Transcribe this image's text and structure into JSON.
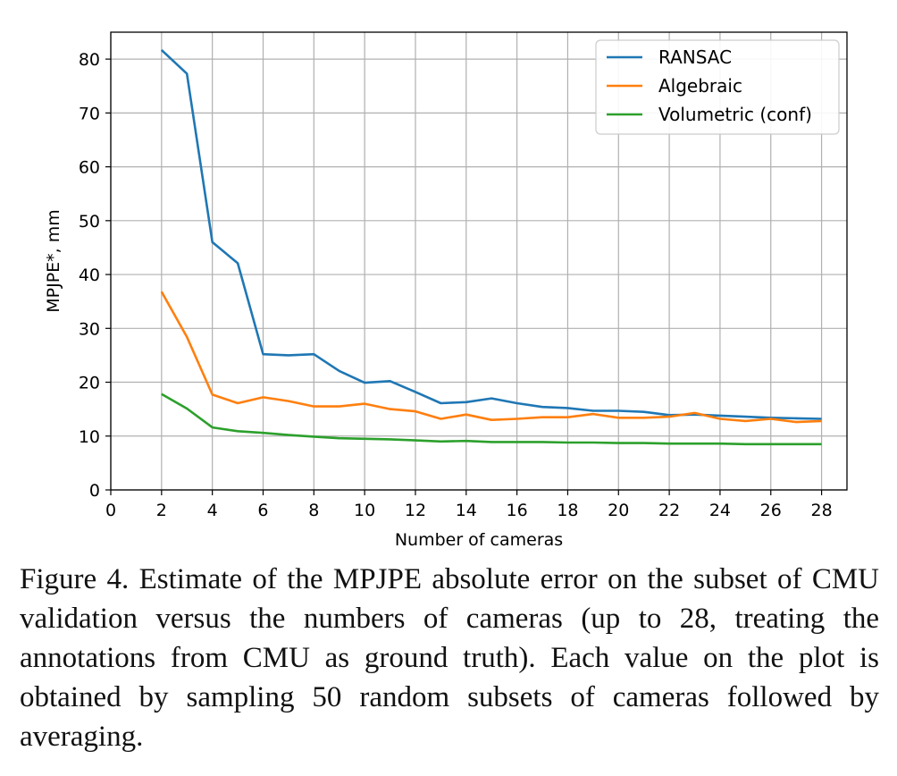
{
  "chart_data": {
    "type": "line",
    "xlabel": "Number of cameras",
    "ylabel": "MPJPE*, mm",
    "xlim": [
      0,
      29
    ],
    "ylim": [
      0,
      85
    ],
    "xticks": [
      0,
      2,
      4,
      6,
      8,
      10,
      12,
      14,
      16,
      18,
      20,
      22,
      24,
      26,
      28
    ],
    "yticks": [
      0,
      10,
      20,
      30,
      40,
      50,
      60,
      70,
      80
    ],
    "grid": true,
    "legend_position": "top-right",
    "x": [
      2,
      3,
      4,
      5,
      6,
      7,
      8,
      9,
      10,
      11,
      12,
      13,
      14,
      15,
      16,
      17,
      18,
      19,
      20,
      21,
      22,
      23,
      24,
      25,
      26,
      27,
      28
    ],
    "series": [
      {
        "name": "RANSAC",
        "color": "#1f77b4",
        "values": [
          81.7,
          77.3,
          46.0,
          42.1,
          25.2,
          25.0,
          25.2,
          22.1,
          19.9,
          20.2,
          18.2,
          16.1,
          16.3,
          17.0,
          16.1,
          15.4,
          15.2,
          14.7,
          14.7,
          14.5,
          13.9,
          14.0,
          13.8,
          13.6,
          13.4,
          13.3,
          13.2
        ]
      },
      {
        "name": "Algebraic",
        "color": "#ff7f0e",
        "values": [
          36.8,
          28.4,
          17.7,
          16.1,
          17.2,
          16.5,
          15.5,
          15.5,
          16.0,
          15.0,
          14.6,
          13.2,
          14.0,
          13.0,
          13.2,
          13.5,
          13.5,
          14.1,
          13.4,
          13.4,
          13.6,
          14.3,
          13.2,
          12.8,
          13.2,
          12.6,
          12.8
        ]
      },
      {
        "name": "Volumetric (conf)",
        "color": "#2ca02c",
        "values": [
          17.8,
          15.1,
          11.6,
          10.9,
          10.6,
          10.2,
          9.9,
          9.6,
          9.5,
          9.4,
          9.2,
          9.0,
          9.1,
          8.9,
          8.9,
          8.9,
          8.8,
          8.8,
          8.7,
          8.7,
          8.6,
          8.6,
          8.6,
          8.5,
          8.5,
          8.5,
          8.5
        ]
      }
    ]
  },
  "caption": {
    "lines": [
      "Figure 4. Estimate of the MPJPE absolute error on the subset of",
      "CMU validation versus the numbers of cameras (up to 28, treating",
      "the annotations from CMU as ground truth). Each value on the plot",
      "is obtained by sampling 50 random subsets of cameras followed by",
      "averaging."
    ]
  }
}
